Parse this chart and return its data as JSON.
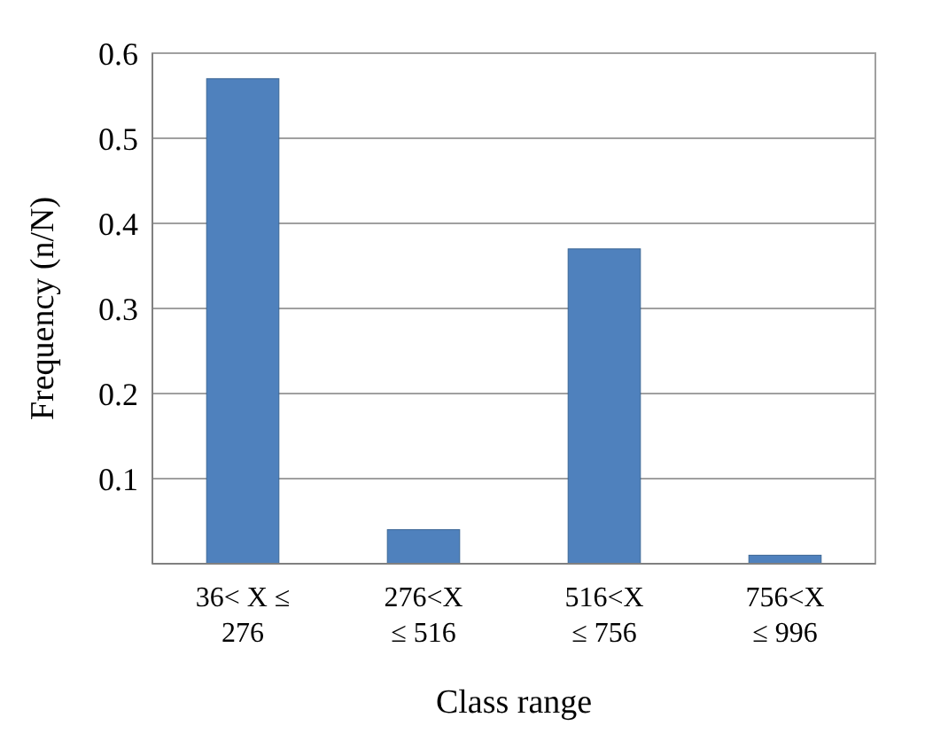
{
  "chart_data": {
    "type": "bar",
    "xlabel": "Class range",
    "ylabel": "Frequency (n/N)",
    "categories": [
      "36< X ≤\n276",
      "276<X\n≤ 516",
      "516<X\n≤ 756",
      "756<X\n≤ 996"
    ],
    "values": [
      0.57,
      0.04,
      0.37,
      0.01
    ],
    "color": "#4f81bd",
    "ylim": [
      0,
      0.6
    ],
    "yticks": [
      {
        "value": 0,
        "label": null
      },
      0.1,
      0.2,
      0.3,
      0.4,
      0.5,
      0.6
    ],
    "grid": "y"
  }
}
